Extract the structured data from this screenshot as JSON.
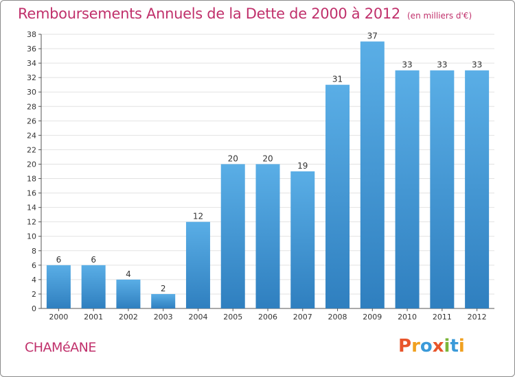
{
  "title": "Remboursements Annuels de la Dette de 2000 à 2012",
  "unit": "(en milliers d'€)",
  "place": "CHAMéANE",
  "logo": {
    "text": "Proxiti",
    "letters": [
      {
        "ch": "P",
        "color": "#e8552b"
      },
      {
        "ch": "r",
        "color": "#f0a020"
      },
      {
        "ch": "o",
        "color": "#3b9ad9"
      },
      {
        "ch": "x",
        "color": "#e8552b"
      },
      {
        "ch": "i",
        "color": "#7bb63a"
      },
      {
        "ch": "t",
        "color": "#3b9ad9"
      },
      {
        "ch": "i",
        "color": "#f0a020"
      }
    ]
  },
  "colors": {
    "bar_top": "#5aaee6",
    "bar_bottom": "#2f7fbf",
    "grid": "#e2e2e2",
    "text_accent": "#c0306b"
  },
  "chart_data": {
    "type": "bar",
    "categories": [
      "2000",
      "2001",
      "2002",
      "2003",
      "2004",
      "2005",
      "2006",
      "2007",
      "2008",
      "2009",
      "2010",
      "2011",
      "2012"
    ],
    "values": [
      6,
      6,
      4,
      2,
      12,
      20,
      20,
      19,
      31,
      37,
      33,
      33,
      33
    ],
    "labels": [
      "6",
      "6",
      "4",
      "2",
      "12",
      "20",
      "20",
      "19",
      "31",
      "37",
      "33",
      "33",
      "33"
    ],
    "ylim": [
      0,
      38
    ],
    "yticks": [
      0,
      2,
      4,
      6,
      8,
      10,
      12,
      14,
      16,
      18,
      20,
      22,
      24,
      26,
      28,
      30,
      32,
      34,
      36,
      38
    ],
    "ytick_labels": [
      "0",
      "2",
      "4",
      "6",
      "8",
      "10",
      "12",
      "14",
      "16",
      "18",
      "20",
      "22",
      "24",
      "26",
      "28",
      "30",
      "32",
      "34",
      "36",
      "38"
    ],
    "grid": true,
    "legend": false
  }
}
